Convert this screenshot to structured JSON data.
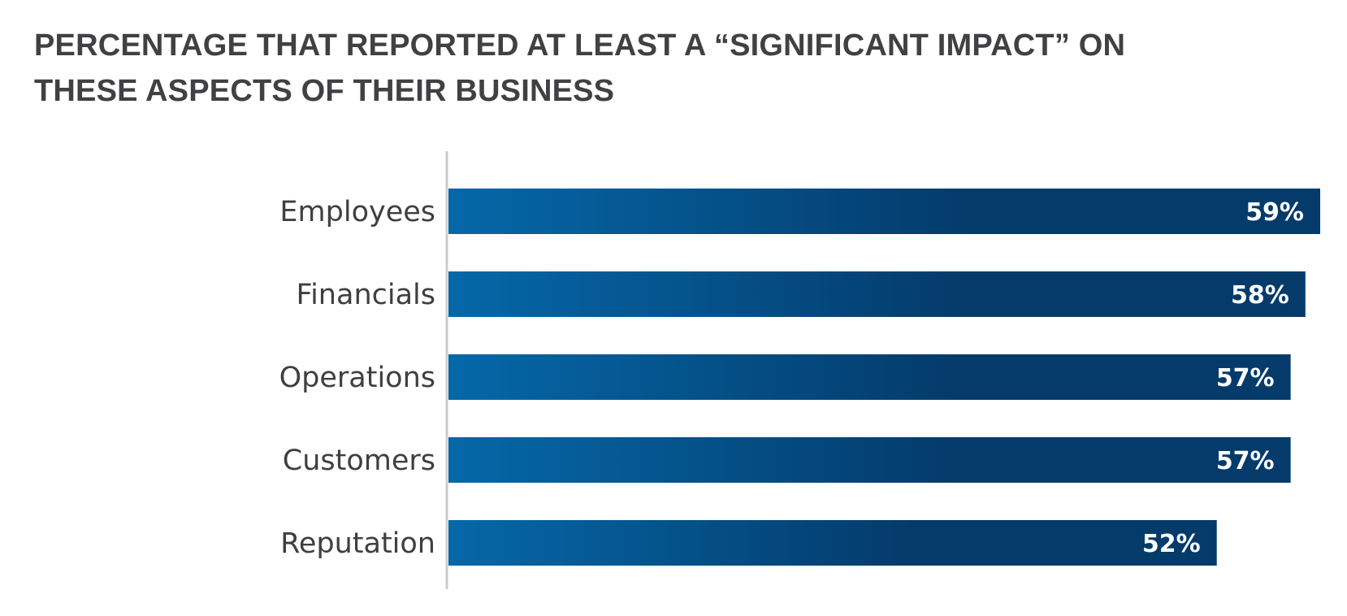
{
  "colors": {
    "bar_light": "#0568a8",
    "bar_dark": "#043b6b",
    "axis": "#cccccc",
    "text": "#414042"
  },
  "chart_data": {
    "type": "bar",
    "orientation": "horizontal",
    "title": "PERCENTAGE THAT REPORTED AT LEAST A “SIGNIFICANT IMPACT” ON THESE ASPECTS OF THEIR BUSINESS",
    "categories": [
      "Employees",
      "Financials",
      "Operations",
      "Customers",
      "Reputation"
    ],
    "values": [
      59,
      58,
      57,
      57,
      52
    ],
    "value_labels": [
      "59%",
      "58%",
      "57%",
      "57%",
      "52%"
    ],
    "unit": "%",
    "xlim": [
      0,
      59
    ],
    "grid": false,
    "legend": "none"
  }
}
